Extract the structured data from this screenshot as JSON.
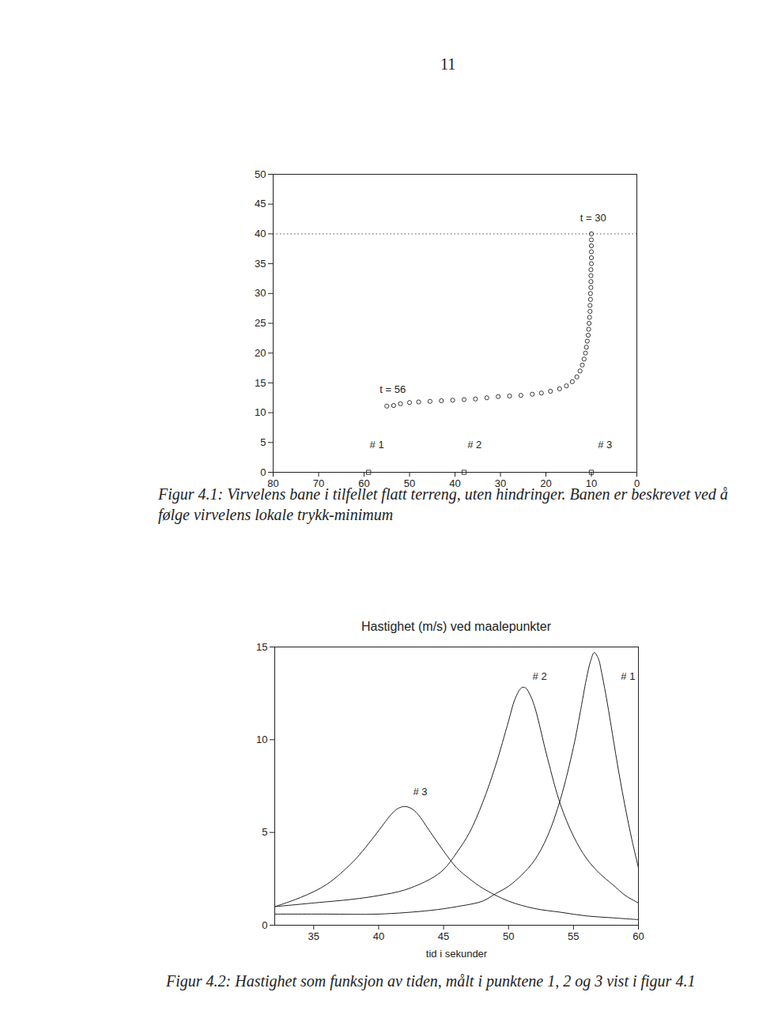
{
  "page_number": "11",
  "chart_data": [
    {
      "type": "scatter",
      "caption": "Figur 4.1: Virvelens bane i tilfellet flatt terreng, uten hindringer. Banen er beskrevet ved å følge virvelens lokale trykk-minimum",
      "xlim": [
        80,
        0
      ],
      "xticks": [
        80,
        70,
        60,
        50,
        40,
        30,
        20,
        10,
        0
      ],
      "ylim": [
        0,
        50
      ],
      "yticks": [
        0,
        5,
        10,
        15,
        20,
        25,
        30,
        35,
        40,
        45,
        50
      ],
      "grid": false,
      "series": [
        {
          "marker": "circle",
          "color": "#222222",
          "x": [
            10,
            10,
            10,
            10,
            10,
            10,
            10.1,
            10.1,
            10.1,
            10.1,
            10.2,
            10.2,
            10.3,
            10.3,
            10.4,
            10.5,
            10.6,
            10.7,
            10.9,
            11.1,
            11.3,
            11.6,
            12,
            12.5,
            13.2,
            14.2,
            15.5,
            17,
            19,
            21,
            23,
            25.5,
            28,
            30.5,
            33,
            35.5,
            38,
            40.5,
            43,
            45.5,
            48,
            50,
            52,
            53.5,
            55
          ],
          "values": [
            40,
            39,
            38,
            37,
            36,
            35,
            34,
            33,
            32,
            31,
            30,
            29,
            28,
            27,
            26,
            25,
            24,
            23,
            22,
            21,
            20,
            19,
            18,
            17,
            16,
            15.2,
            14.5,
            14,
            13.6,
            13.3,
            13.1,
            12.9,
            12.8,
            12.7,
            12.5,
            12.3,
            12.2,
            12.1,
            12,
            11.9,
            11.8,
            11.7,
            11.5,
            11.2,
            11.1
          ]
        },
        {
          "marker": "square",
          "color": "#222222",
          "x": [
            59,
            38,
            10
          ],
          "values": [
            0,
            0,
            0
          ]
        }
      ],
      "hline": {
        "y": 40,
        "line_style": "dotted",
        "color": "#555555"
      },
      "annotations": [
        {
          "text": "t = 30",
          "x": 9.6,
          "y": 42.7
        },
        {
          "text": "t = 56",
          "x": 53.7,
          "y": 13.9
        },
        {
          "text": "# 1",
          "x": 57.2,
          "y": 4.6
        },
        {
          "text": "# 2",
          "x": 35.7,
          "y": 4.6
        },
        {
          "text": "# 3",
          "x": 7.0,
          "y": 4.6
        }
      ]
    },
    {
      "type": "line",
      "title": "Hastighet (m/s) ved maalepunkter",
      "xlabel": "tid i sekunder",
      "caption": "Figur 4.2: Hastighet som funksjon av tiden, målt i punktene 1, 2 og 3 vist i figur 4.1",
      "xlim": [
        32,
        60
      ],
      "xticks": [
        35,
        40,
        45,
        50,
        55,
        60
      ],
      "ylim": [
        0,
        15
      ],
      "yticks": [
        0,
        5,
        10,
        15
      ],
      "grid": false,
      "series": [
        {
          "color": "#222222",
          "line_style": "solid",
          "x": [
            32,
            34,
            36,
            38,
            39,
            40,
            41,
            41.5,
            42,
            42.5,
            43,
            44,
            45,
            46,
            47,
            48,
            50,
            52,
            54,
            56,
            58,
            60
          ],
          "values": [
            1.0,
            1.5,
            2.2,
            3.4,
            4.2,
            5.1,
            6.0,
            6.3,
            6.4,
            6.3,
            6.0,
            5.0,
            4.0,
            3.1,
            2.5,
            2.0,
            1.3,
            0.9,
            0.7,
            0.5,
            0.4,
            0.3
          ]
        },
        {
          "color": "#222222",
          "line_style": "solid",
          "x": [
            32,
            35,
            38,
            40,
            42,
            44,
            45,
            46,
            47,
            48,
            49,
            50,
            50.5,
            51,
            51.3,
            51.6,
            52,
            53,
            54,
            55,
            56,
            57,
            58,
            59,
            60
          ],
          "values": [
            1.0,
            1.2,
            1.4,
            1.6,
            1.9,
            2.5,
            3.0,
            3.9,
            5.0,
            6.6,
            8.6,
            11.0,
            12.2,
            12.8,
            12.8,
            12.5,
            11.8,
            9.0,
            6.5,
            4.8,
            3.6,
            2.8,
            2.2,
            1.6,
            1.2
          ]
        },
        {
          "color": "#222222",
          "line_style": "solid",
          "x": [
            32,
            36,
            40,
            44,
            46,
            48,
            49,
            50,
            51,
            52,
            53,
            54,
            55,
            55.5,
            56,
            56.3,
            56.6,
            56.9,
            57.2,
            57.6,
            58,
            58.5,
            59,
            59.5,
            60
          ],
          "values": [
            0.6,
            0.6,
            0.6,
            0.8,
            1.0,
            1.3,
            1.7,
            2.1,
            2.7,
            3.5,
            4.8,
            6.8,
            9.6,
            11.4,
            13.3,
            14.2,
            14.7,
            14.4,
            13.5,
            12.0,
            10.3,
            8.2,
            6.3,
            4.6,
            3.1
          ]
        }
      ],
      "annotations": [
        {
          "text": "# 3",
          "x": 43.2,
          "y": 7.2
        },
        {
          "text": "# 2",
          "x": 52.4,
          "y": 13.4
        },
        {
          "text": "# 1",
          "x": 59.2,
          "y": 13.4
        }
      ]
    }
  ]
}
